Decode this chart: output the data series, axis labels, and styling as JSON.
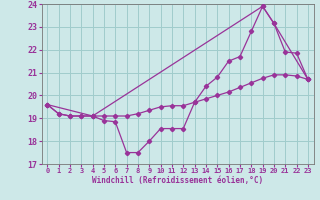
{
  "xlabel": "Windchill (Refroidissement éolien,°C)",
  "bg_color": "#cde8e8",
  "line_color": "#993399",
  "grid_color": "#a0cccc",
  "xlim": [
    -0.5,
    23.5
  ],
  "ylim": [
    17,
    24
  ],
  "yticks": [
    17,
    18,
    19,
    20,
    21,
    22,
    23,
    24
  ],
  "xticks": [
    0,
    1,
    2,
    3,
    4,
    5,
    6,
    7,
    8,
    9,
    10,
    11,
    12,
    13,
    14,
    15,
    16,
    17,
    18,
    19,
    20,
    21,
    22,
    23
  ],
  "line1_x": [
    0,
    1,
    2,
    3,
    4,
    5,
    6,
    7,
    8,
    9,
    10,
    11,
    12,
    13,
    14,
    15,
    16,
    17,
    18,
    19,
    20,
    21,
    22,
    23
  ],
  "line1_y": [
    19.6,
    19.2,
    19.1,
    19.1,
    19.1,
    18.9,
    18.85,
    17.5,
    17.5,
    18.0,
    18.55,
    18.55,
    18.55,
    19.7,
    20.4,
    20.8,
    21.5,
    21.7,
    22.8,
    23.9,
    23.15,
    21.9,
    21.85,
    20.7
  ],
  "line2_x": [
    0,
    1,
    2,
    3,
    4,
    5,
    6,
    7,
    8,
    9,
    10,
    11,
    12,
    13,
    14,
    15,
    16,
    17,
    18,
    19,
    20,
    21,
    22,
    23
  ],
  "line2_y": [
    19.6,
    19.2,
    19.1,
    19.1,
    19.1,
    19.1,
    19.1,
    19.1,
    19.2,
    19.35,
    19.5,
    19.55,
    19.55,
    19.7,
    19.85,
    20.0,
    20.15,
    20.35,
    20.55,
    20.75,
    20.9,
    20.9,
    20.85,
    20.7
  ],
  "line3_x": [
    0,
    4,
    19,
    20,
    23
  ],
  "line3_y": [
    19.6,
    19.1,
    23.9,
    23.15,
    20.7
  ]
}
